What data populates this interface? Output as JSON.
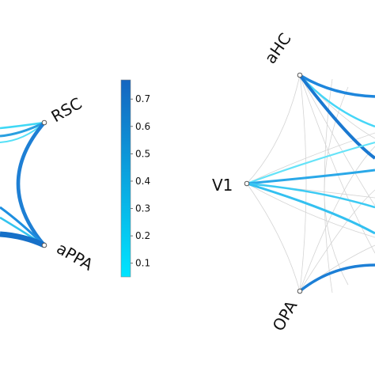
{
  "nodes": {
    "left": [
      {
        "id": "rsc",
        "label": "RSC"
      },
      {
        "id": "appa",
        "label": "aPPA"
      }
    ],
    "right": [
      {
        "id": "ahc",
        "label": "aHC"
      },
      {
        "id": "v1",
        "label": "V1"
      },
      {
        "id": "opa",
        "label": "OPA"
      }
    ]
  },
  "colorbar": {
    "min": 0.05,
    "max": 0.77,
    "ticks": [
      "0.1",
      "0.2",
      "0.3",
      "0.4",
      "0.5",
      "0.6",
      "0.7"
    ],
    "color_low": "#00e5ff",
    "color_high": "#1565c0"
  },
  "colors": {
    "background_edge": "#d4d4d4",
    "node_fill": "#ffffff",
    "node_stroke": "#555555"
  }
}
